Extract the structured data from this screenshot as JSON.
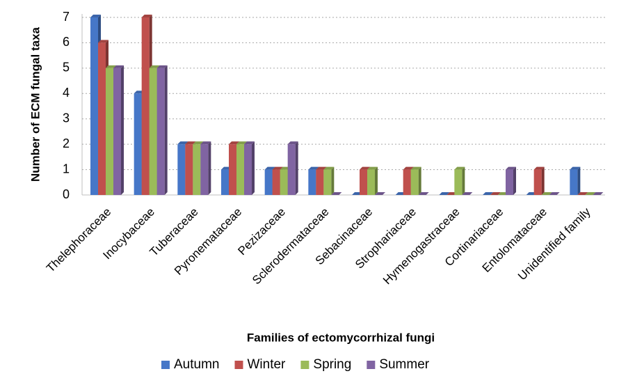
{
  "chart_data": {
    "type": "bar",
    "xlabel": "Families of ectomycorrhizal fungi",
    "ylabel": "Number of ECM  fungal taxa",
    "categories": [
      "Thelephoraceae",
      "Inocybaceae",
      "Tuberaceae",
      "Pyronemataceae",
      "Pezizaceae",
      "Sclerodermataceae",
      "Sebacinaceae",
      "Strophariaceae",
      "Hymenogastraceae",
      "Cortinariaceae",
      "Entolomataceae",
      "Unidentified family"
    ],
    "series": [
      {
        "name": "Autumn",
        "color": "#4677c8",
        "values": [
          7,
          4,
          2,
          1,
          1,
          1,
          0,
          0,
          0,
          0,
          0,
          1
        ]
      },
      {
        "name": "Winter",
        "color": "#c0504d",
        "values": [
          6,
          7,
          2,
          2,
          1,
          1,
          1,
          1,
          0,
          0,
          1,
          0
        ]
      },
      {
        "name": "Spring",
        "color": "#9bbb59",
        "values": [
          5,
          5,
          2,
          2,
          1,
          1,
          1,
          1,
          1,
          0,
          0,
          0
        ]
      },
      {
        "name": "Summer",
        "color": "#8064a2",
        "values": [
          5,
          5,
          2,
          2,
          2,
          0,
          0,
          0,
          0,
          1,
          0,
          0
        ]
      }
    ],
    "ylim": [
      0,
      7
    ],
    "yticks": [
      0,
      1,
      2,
      3,
      4,
      5,
      6,
      7
    ],
    "grid": true,
    "legend": "bottom"
  }
}
